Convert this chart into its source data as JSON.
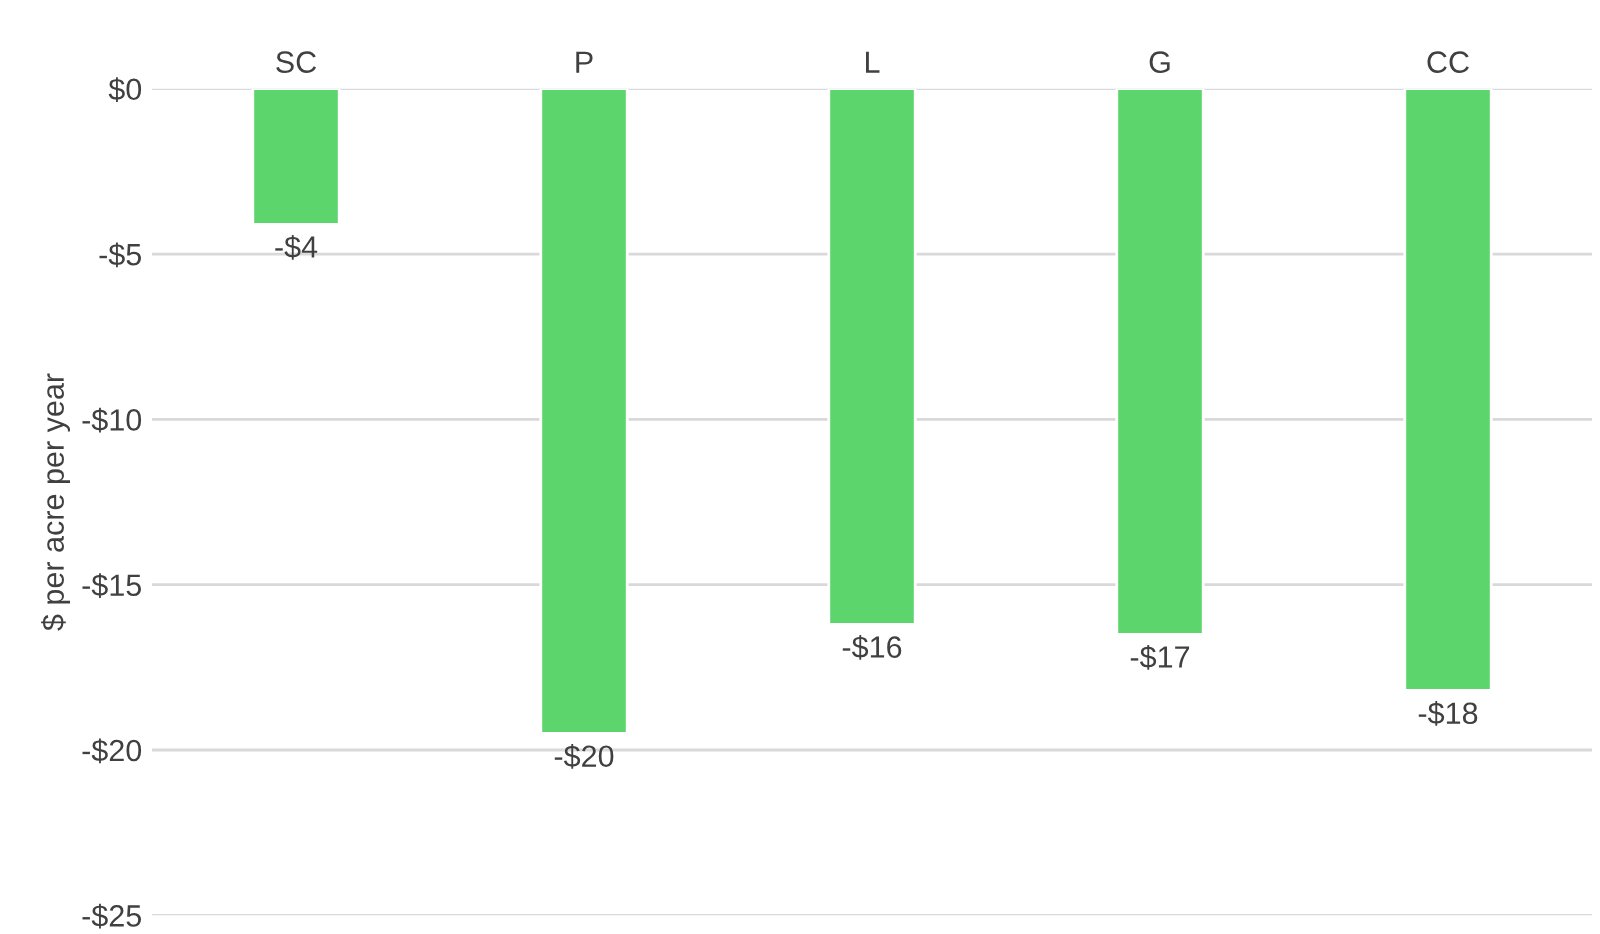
{
  "chart_data": {
    "type": "bar",
    "ylabel": "$ per acre per year",
    "categories": [
      "SC",
      "P",
      "L",
      "G",
      "CC"
    ],
    "values": [
      -4.1,
      -19.5,
      -16.2,
      -16.5,
      -18.2
    ],
    "value_labels": [
      "-$4",
      "-$20",
      "-$16",
      "-$17",
      "-$18"
    ],
    "color": "#5cd66c",
    "ylim": [
      -25,
      0
    ],
    "yticks": [
      {
        "value": 0,
        "label": "$0"
      },
      {
        "value": -5,
        "label": "-$5"
      },
      {
        "value": -10,
        "label": "-$10"
      },
      {
        "value": -15,
        "label": "-$15"
      },
      {
        "value": -20,
        "label": "-$20"
      },
      {
        "value": -25,
        "label": "-$25"
      }
    ],
    "grid": "y",
    "legend": false
  }
}
